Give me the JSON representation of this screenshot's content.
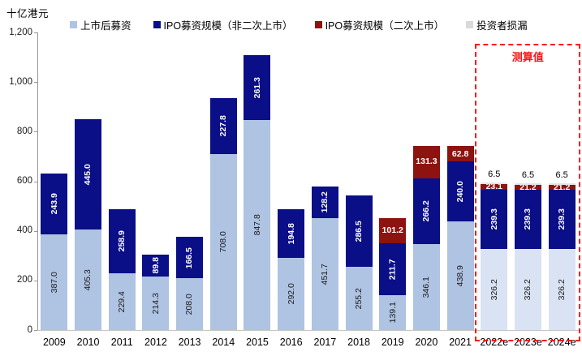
{
  "unit_label": "十亿港元",
  "estimate_box_label": "测算值",
  "legend": [
    {
      "label": "上市后募资",
      "color": "#afc3e2"
    },
    {
      "label": "IPO募资规模（非二次上市）",
      "color": "#0a0e87"
    },
    {
      "label": "IPO募资规模（二次上市）",
      "color": "#8d1310"
    },
    {
      "label": "投资者损漏",
      "color": "#d9d9d9"
    }
  ],
  "chart_data": {
    "type": "bar",
    "stacked": true,
    "title": "",
    "xlabel": "",
    "ylabel": "十亿港元",
    "ylim": [
      0,
      1200
    ],
    "grid": false,
    "legend_position": "top",
    "yticks": [
      {
        "value": 0,
        "label": "0"
      },
      {
        "value": 200,
        "label": "200"
      },
      {
        "value": 400,
        "label": "400"
      },
      {
        "value": 600,
        "label": "600"
      },
      {
        "value": 800,
        "label": "800"
      },
      {
        "value": 1000,
        "label": "1,000"
      },
      {
        "value": 1200,
        "label": "1,200"
      }
    ],
    "categories": [
      "2009",
      "2010",
      "2011",
      "2012",
      "2013",
      "2014",
      "2015",
      "2016",
      "2017",
      "2018",
      "2019",
      "2020",
      "2021",
      "2022e",
      "2023e",
      "2024e"
    ],
    "estimate_start_index": 13,
    "estimate_note": "测算值",
    "series": [
      {
        "name": "上市后募资",
        "color": "#afc3e2",
        "estimate_color": "#dae3f3",
        "label_orientation": "vertical",
        "label_color": "dark",
        "values": [
          387.0,
          405.3,
          229.4,
          214.3,
          208.0,
          708.0,
          847.8,
          292.0,
          451.7,
          255.2,
          139.1,
          346.1,
          438.9,
          326.2,
          326.2,
          326.2
        ]
      },
      {
        "name": "IPO募资规模（非二次上市）",
        "color": "#0a0e87",
        "estimate_color": "#0a0e87",
        "label_orientation": "vertical",
        "label_color": "light",
        "values": [
          243.9,
          445.0,
          258.9,
          89.8,
          166.5,
          227.8,
          261.3,
          194.8,
          128.2,
          286.5,
          211.7,
          266.2,
          240.0,
          239.3,
          239.3,
          239.3
        ]
      },
      {
        "name": "IPO募资规模（二次上市）",
        "color": "#8d1310",
        "estimate_color": "#8d1310",
        "label_orientation": "horizontal",
        "label_color": "light",
        "values": [
          0,
          0,
          0,
          0,
          0,
          0,
          0,
          0,
          0,
          0,
          101.2,
          131.3,
          62.8,
          23.1,
          21.2,
          21.2
        ]
      },
      {
        "name": "投资者损漏",
        "color": "#d9d9d9",
        "estimate_color": "#e4e4e4",
        "label_orientation": "above",
        "label_color": "dark",
        "values": [
          0,
          0,
          0,
          0,
          0,
          0,
          0,
          0,
          0,
          0,
          0,
          0,
          0,
          6.5,
          6.5,
          6.5
        ]
      }
    ]
  }
}
